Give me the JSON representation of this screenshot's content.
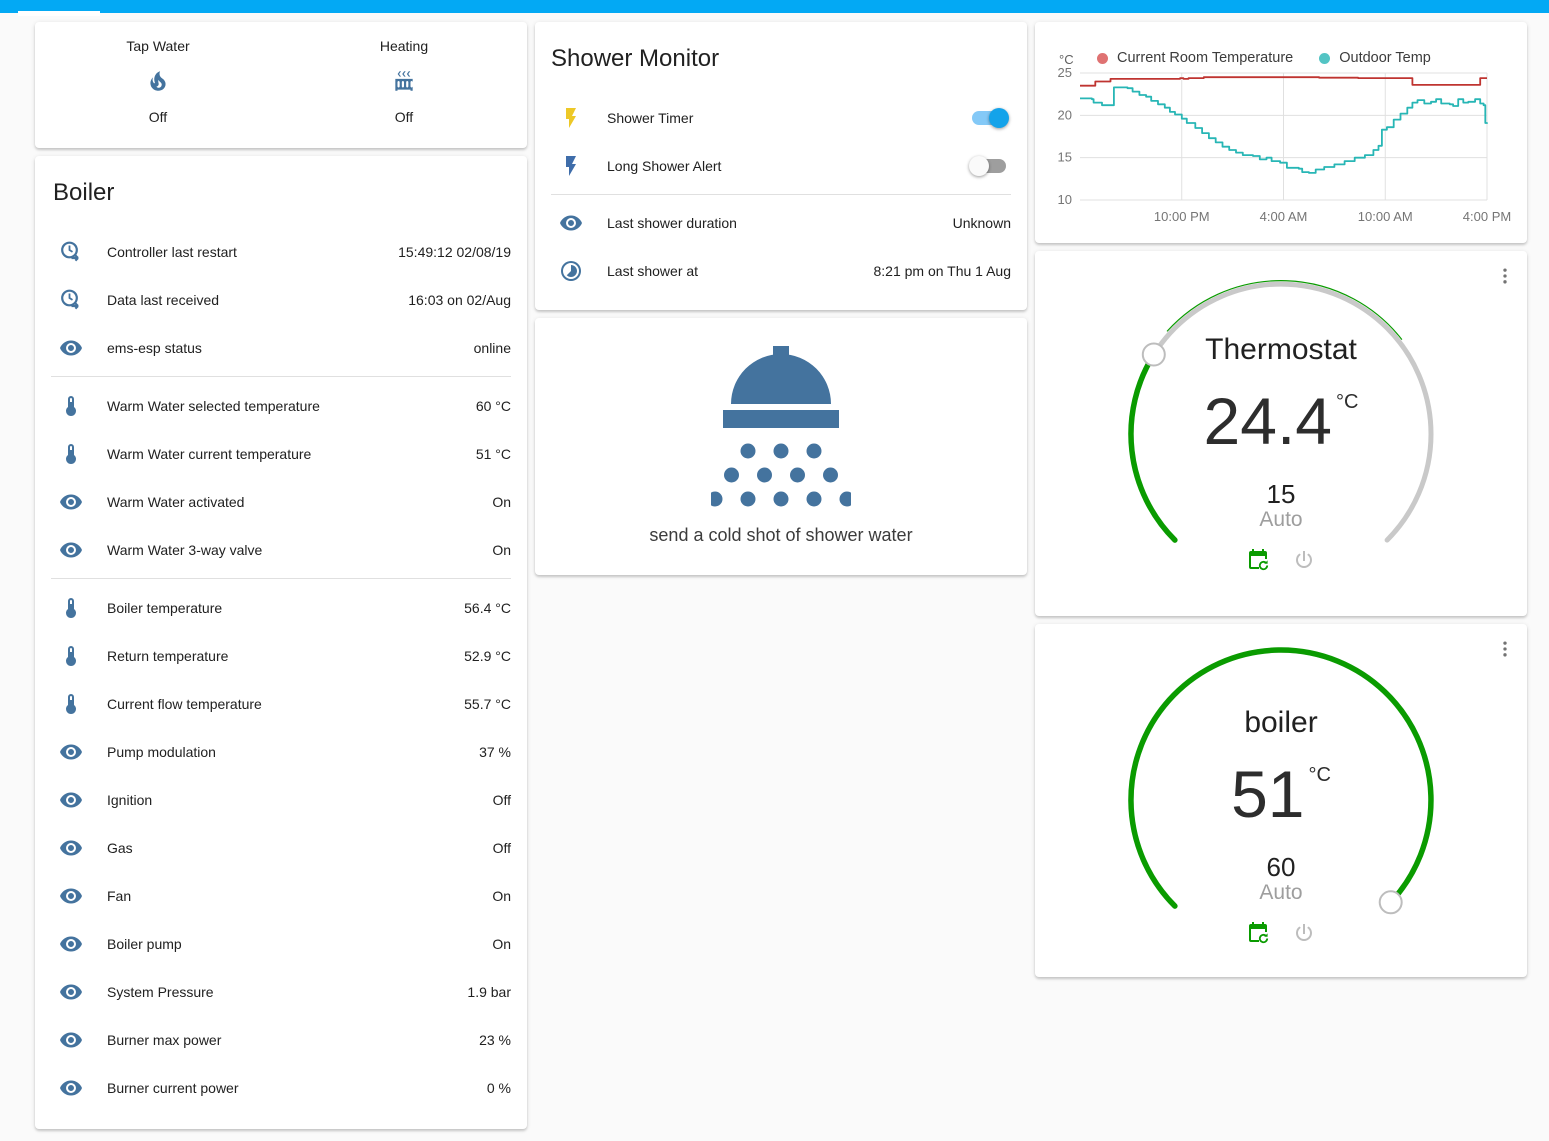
{
  "colors": {
    "appbar_blue": "#03a9f4",
    "icon_blue": "#44739e",
    "dial_green": "#0a9b00",
    "dial_gray": "#c9c9c9",
    "toggle_on": "#14a3ea",
    "flash_yellow": "#edc827",
    "flash_blue": "#3f6daa"
  },
  "glance_card": {
    "items": [
      {
        "name": "Tap Water",
        "state": "Off",
        "icon": "fire-icon"
      },
      {
        "name": "Heating",
        "state": "Off",
        "icon": "radiator-icon"
      }
    ]
  },
  "boiler_card": {
    "title": "Boiler",
    "rows": [
      {
        "icon": "clock-export-icon",
        "label": "Controller last restart",
        "value": "15:49:12 02/08/19"
      },
      {
        "icon": "clock-export-icon",
        "label": "Data last received",
        "value": "16:03 on 02/Aug"
      },
      {
        "icon": "eye-icon",
        "label": "ems-esp status",
        "value": "online",
        "divider_below": true
      },
      {
        "icon": "thermometer-icon",
        "label": "Warm Water selected temperature",
        "value": "60 °C"
      },
      {
        "icon": "thermometer-icon",
        "label": "Warm Water current temperature",
        "value": "51 °C"
      },
      {
        "icon": "eye-icon",
        "label": "Warm Water activated",
        "value": "On"
      },
      {
        "icon": "eye-icon",
        "label": "Warm Water 3-way valve",
        "value": "On",
        "divider_below": true
      },
      {
        "icon": "thermometer-icon",
        "label": "Boiler temperature",
        "value": "56.4 °C"
      },
      {
        "icon": "thermometer-icon",
        "label": "Return temperature",
        "value": "52.9 °C"
      },
      {
        "icon": "thermometer-icon",
        "label": "Current flow temperature",
        "value": "55.7 °C"
      },
      {
        "icon": "eye-icon",
        "label": "Pump modulation",
        "value": "37 %"
      },
      {
        "icon": "eye-icon",
        "label": "Ignition",
        "value": "Off"
      },
      {
        "icon": "eye-icon",
        "label": "Gas",
        "value": "Off"
      },
      {
        "icon": "eye-icon",
        "label": "Fan",
        "value": "On"
      },
      {
        "icon": "eye-icon",
        "label": "Boiler pump",
        "value": "On"
      },
      {
        "icon": "eye-icon",
        "label": "System Pressure",
        "value": "1.9 bar"
      },
      {
        "icon": "eye-icon",
        "label": "Burner max power",
        "value": "23 %"
      },
      {
        "icon": "eye-icon",
        "label": "Burner current power",
        "value": "0 %"
      }
    ]
  },
  "shower_card": {
    "title": "Shower Monitor",
    "switch_rows": [
      {
        "icon": "flash-icon",
        "icon_color": "#edc827",
        "label": "Shower Timer",
        "state": true
      },
      {
        "icon": "flash-icon",
        "icon_color": "#3f6daa",
        "label": "Long Shower Alert",
        "state": false
      }
    ],
    "sensor_rows": [
      {
        "icon": "eye-icon",
        "label": "Last shower duration",
        "value": "Unknown"
      },
      {
        "icon": "timelapse-icon",
        "label": "Last shower at",
        "value": "8:21 pm on Thu 1 Aug"
      }
    ]
  },
  "shower_action_card": {
    "label": "send a cold shot of shower water"
  },
  "chart_data": {
    "type": "line",
    "unit_label": "°C",
    "ylim": [
      10,
      25
    ],
    "yticks": [
      25,
      20,
      15,
      10
    ],
    "x_range_hours": 24,
    "xticks": [
      {
        "t": 6,
        "label": "10:00 PM"
      },
      {
        "t": 12,
        "label": "4:00 AM"
      },
      {
        "t": 18,
        "label": "10:00 AM"
      },
      {
        "t": 24,
        "label": "4:00 PM"
      }
    ],
    "grid": true,
    "legend_position": "top",
    "series": [
      {
        "name": "Current Room Temperature",
        "color": "#bf3430",
        "dot_color": "#df7272",
        "points": [
          [
            0,
            23.5
          ],
          [
            0.9,
            24.0
          ],
          [
            1.8,
            24.3
          ],
          [
            5.9,
            24.4
          ],
          [
            6.1,
            24.3
          ],
          [
            6.4,
            24.4
          ],
          [
            7.3,
            24.5
          ],
          [
            13.8,
            24.5
          ],
          [
            14.1,
            24.45
          ],
          [
            16.2,
            24.45
          ],
          [
            16.4,
            24.4
          ],
          [
            19.3,
            24.4
          ],
          [
            19.6,
            23.6
          ],
          [
            23.5,
            23.6
          ],
          [
            23.6,
            24.4
          ],
          [
            24,
            24.4
          ]
        ]
      },
      {
        "name": "Outdoor Temp",
        "color": "#27b6b5",
        "dot_color": "#53c4c4",
        "points": [
          [
            0,
            22.0
          ],
          [
            0.7,
            21.9
          ],
          [
            0.8,
            21.5
          ],
          [
            1.2,
            21.5
          ],
          [
            1.3,
            21.2
          ],
          [
            1.9,
            21.2
          ],
          [
            2.0,
            23.3
          ],
          [
            2.8,
            23.2
          ],
          [
            3.1,
            22.8
          ],
          [
            3.5,
            22.4
          ],
          [
            3.9,
            22.2
          ],
          [
            4.2,
            21.7
          ],
          [
            4.6,
            21.3
          ],
          [
            5.0,
            20.9
          ],
          [
            5.3,
            20.4
          ],
          [
            5.6,
            20.1
          ],
          [
            6.0,
            19.6
          ],
          [
            6.3,
            19.1
          ],
          [
            6.8,
            18.5
          ],
          [
            7.2,
            17.9
          ],
          [
            7.6,
            17.3
          ],
          [
            8.0,
            16.8
          ],
          [
            8.4,
            16.3
          ],
          [
            8.8,
            15.9
          ],
          [
            9.2,
            15.6
          ],
          [
            9.6,
            15.3
          ],
          [
            10.2,
            15.2
          ],
          [
            10.6,
            14.8
          ],
          [
            11.0,
            15.0
          ],
          [
            11.3,
            14.6
          ],
          [
            11.8,
            14.4
          ],
          [
            12.2,
            13.8
          ],
          [
            12.9,
            13.7
          ],
          [
            13.1,
            13.3
          ],
          [
            13.5,
            13.2
          ],
          [
            13.9,
            13.6
          ],
          [
            14.4,
            13.9
          ],
          [
            15.0,
            14.2
          ],
          [
            15.6,
            14.6
          ],
          [
            16.2,
            15.0
          ],
          [
            16.8,
            15.3
          ],
          [
            17.3,
            15.9
          ],
          [
            17.6,
            16.4
          ],
          [
            17.8,
            18.3
          ],
          [
            18.1,
            18.6
          ],
          [
            18.5,
            19.5
          ],
          [
            18.9,
            20.2
          ],
          [
            19.3,
            20.9
          ],
          [
            19.6,
            21.5
          ],
          [
            19.9,
            21.8
          ],
          [
            20.3,
            21.4
          ],
          [
            20.7,
            21.6
          ],
          [
            21.0,
            21.9
          ],
          [
            21.3,
            21.4
          ],
          [
            21.8,
            21.3
          ],
          [
            22.0,
            21.1
          ],
          [
            22.3,
            21.9
          ],
          [
            22.6,
            21.5
          ],
          [
            22.9,
            21.6
          ],
          [
            23.3,
            21.9
          ],
          [
            23.6,
            21.4
          ],
          [
            23.8,
            21.2
          ],
          [
            23.9,
            19.1
          ],
          [
            24,
            19.0
          ]
        ]
      }
    ]
  },
  "thermostat_card": {
    "title": "Thermostat",
    "current": "24.4",
    "unit": "°C",
    "target": "15",
    "mode": "Auto"
  },
  "boiler_climate_card": {
    "title": "boiler",
    "current": "51",
    "unit": "°C",
    "target": "60",
    "mode": "Auto"
  }
}
